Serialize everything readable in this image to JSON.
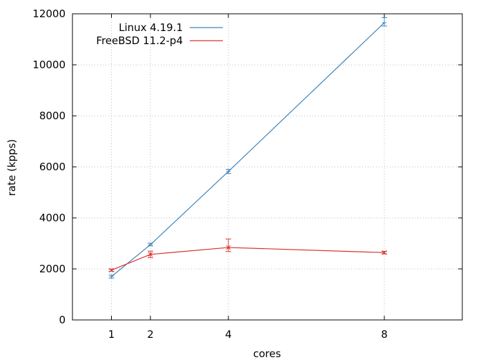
{
  "chart_data": {
    "type": "line",
    "title": "",
    "xlabel": "cores",
    "ylabel": "rate (kpps)",
    "x": [
      1,
      2,
      4,
      8
    ],
    "xlim": [
      0,
      10
    ],
    "ylim": [
      0,
      12000
    ],
    "xticks": [
      1,
      2,
      4,
      8
    ],
    "yticks": [
      0,
      2000,
      4000,
      6000,
      8000,
      10000,
      12000
    ],
    "grid": true,
    "legend_position": "top-left",
    "series": [
      {
        "name": "Linux 4.19.1",
        "color": "#3a83bd",
        "values": [
          1700,
          2950,
          5820,
          11650
        ],
        "err_low": [
          1640,
          2900,
          5740,
          11520
        ],
        "err_high": [
          1760,
          3010,
          5900,
          11850
        ]
      },
      {
        "name": "FreeBSD 11.2-p4",
        "color": "#d6302a",
        "values": [
          1950,
          2570,
          2840,
          2640
        ],
        "err_low": [
          1910,
          2440,
          2680,
          2590
        ],
        "err_high": [
          1990,
          2700,
          3170,
          2690
        ]
      }
    ]
  }
}
